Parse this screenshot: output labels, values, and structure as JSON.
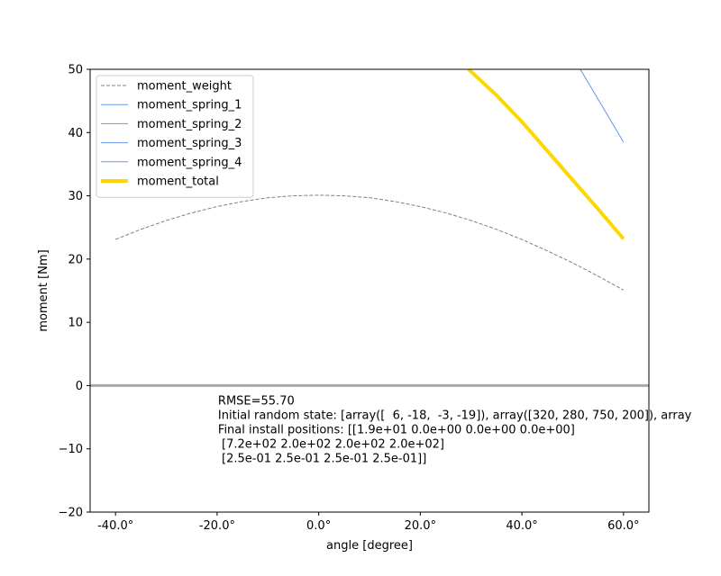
{
  "chart_data": {
    "type": "line",
    "xlabel": "angle [degree]",
    "ylabel": "moment [Nm]",
    "xlim": [
      -45,
      65
    ],
    "ylim": [
      -20,
      50
    ],
    "xticks": [
      -40,
      -20,
      0,
      20,
      40,
      60
    ],
    "xtick_labels": [
      "-40.0°",
      "-20.0°",
      "0.0°",
      "20.0°",
      "40.0°",
      "60.0°"
    ],
    "yticks": [
      -20,
      -10,
      0,
      10,
      20,
      30,
      40,
      50
    ],
    "ytick_labels": [
      "−20",
      "−10",
      "0",
      "10",
      "20",
      "30",
      "40",
      "50"
    ],
    "grid": false,
    "legend_position": "upper-left",
    "x": [
      -40,
      -35,
      -30,
      -25,
      -20,
      -15,
      -10,
      -5,
      0,
      5,
      10,
      15,
      20,
      25,
      30,
      35,
      40,
      45,
      50,
      55,
      60
    ],
    "series": [
      {
        "name": "moment_weight",
        "color": "#808080",
        "style": "dashed",
        "width": 1,
        "values": [
          23.1,
          24.7,
          26.1,
          27.3,
          28.3,
          29.1,
          29.7,
          30.0,
          30.1,
          30.0,
          29.7,
          29.1,
          28.3,
          27.3,
          26.1,
          24.7,
          23.1,
          21.3,
          19.4,
          17.3,
          15.1
        ]
      },
      {
        "name": "moment_spring_1",
        "color": "#6495ed",
        "style": "solid",
        "width": 1,
        "x": [
          51.5,
          60
        ],
        "values": [
          50,
          38.5
        ]
      },
      {
        "name": "moment_spring_2",
        "color": "#6495ed",
        "style": "solid",
        "width": 1,
        "x": [],
        "values": []
      },
      {
        "name": "moment_spring_3",
        "color": "#6495ed",
        "style": "solid",
        "width": 1,
        "x": [],
        "values": []
      },
      {
        "name": "moment_spring_4",
        "color": "#6495ed",
        "style": "solid",
        "width": 1,
        "x": [],
        "values": []
      },
      {
        "name": "moment_total",
        "color": "#ffd700",
        "style": "solid",
        "width": 4,
        "x": [
          29.5,
          35,
          40,
          45,
          50,
          55,
          60
        ],
        "values": [
          50,
          45.9,
          41.7,
          37.1,
          32.5,
          27.9,
          23.2
        ]
      }
    ],
    "hline": {
      "y": 0,
      "color": "#a9a9a9",
      "width": 3
    },
    "annotation": {
      "x": -20,
      "y": -3,
      "lines": [
        "RMSE=55.70",
        "Initial random state: [array([  6, -18,  -3, -19]), array([320, 280, 750, 200]), array",
        "Final install positions: [[1.9e+01 0.0e+00 0.0e+00 0.0e+00]",
        " [7.2e+02 2.0e+02 2.0e+02 2.0e+02]",
        " [2.5e-01 2.5e-01 2.5e-01 2.5e-01]]"
      ]
    }
  }
}
